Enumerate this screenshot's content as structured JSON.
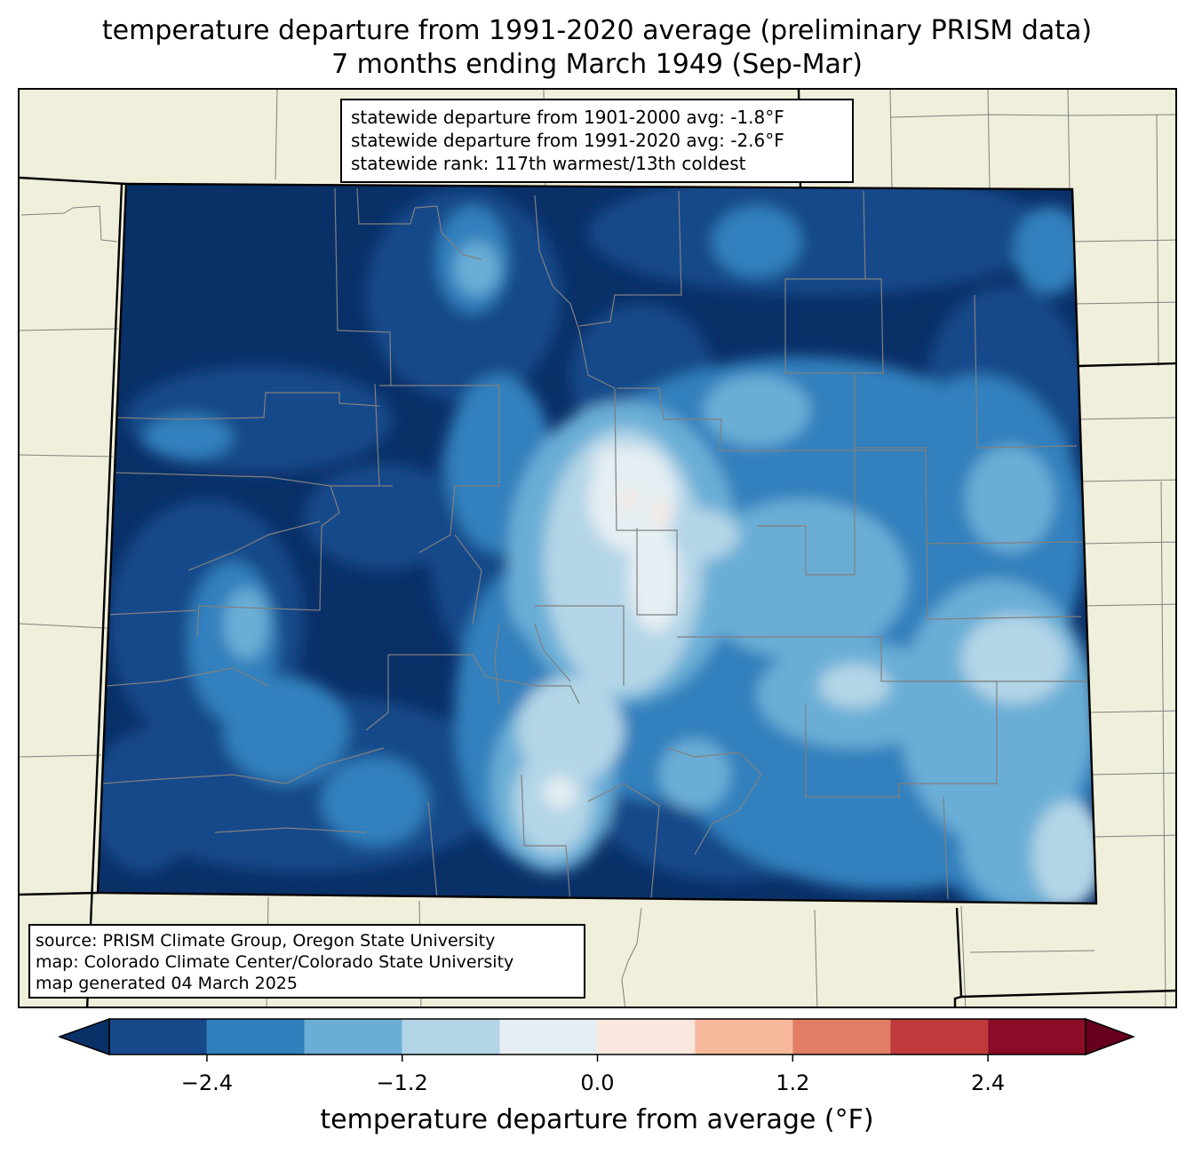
{
  "title": {
    "line1": "temperature departure from 1991-2020 average (preliminary PRISM data)",
    "line2": "7 months ending March 1949 (Sep-Mar)"
  },
  "stats": {
    "line1": "statewide departure from 1901-2000 avg: -1.8°F",
    "line2": "statewide departure from 1991-2020 avg: -2.6°F",
    "line3": "statewide rank: 117th warmest/13th coldest"
  },
  "source": {
    "line1": "source: PRISM Climate Group, Oregon State University",
    "line2": "map: Colorado Climate Center/Colorado State University",
    "line3": "map generated 04 March 2025"
  },
  "colorbar": {
    "label": "temperature departure from average (°F)",
    "ticks": [
      "−2.4",
      "−1.2",
      "0.0",
      "1.2",
      "2.4"
    ],
    "tick_values": [
      -2.4,
      -1.2,
      0.0,
      1.2,
      2.4
    ],
    "range": [
      -3.0,
      3.0
    ],
    "levels": [
      -3.0,
      -2.4,
      -1.8,
      -1.2,
      -0.6,
      0.0,
      0.6,
      1.2,
      1.8,
      2.4,
      3.0
    ],
    "colors": [
      "#16498a",
      "#3080bd",
      "#6aaed6",
      "#b3d5e7",
      "#e5eef3",
      "#fae7dd",
      "#f7b89c",
      "#e17d65",
      "#c03a3b",
      "#8a0c26"
    ],
    "under_color": "#0a3068",
    "over_color": "#67001f"
  },
  "map_colors": {
    "land": "#efefdb",
    "county_lines": "#808080",
    "state_lines": "#000000"
  }
}
